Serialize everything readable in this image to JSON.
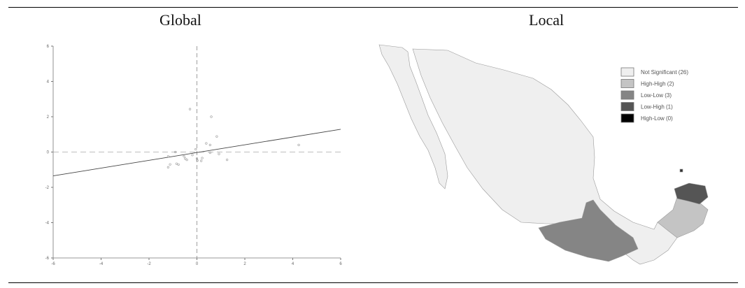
{
  "panels": {
    "left_title": "Global",
    "right_title": "Local"
  },
  "chart_data": {
    "type": "scatter",
    "xlim": [
      -6,
      6
    ],
    "ylim": [
      -6,
      6
    ],
    "xticks": [
      "-6",
      "-4",
      "-2",
      "0",
      "2",
      "4",
      "6"
    ],
    "yticks": [
      "6",
      "4",
      "2",
      "0",
      "-2",
      "-4",
      "-6"
    ],
    "grid": false,
    "reference_lines": {
      "x": 0,
      "y": 0,
      "style": "dashed"
    },
    "regression_line": {
      "slope": 0.22,
      "intercept": -0.03
    },
    "points": [
      [
        -0.29,
        2.43
      ],
      [
        0.6,
        2.0
      ],
      [
        0.83,
        0.88
      ],
      [
        0.39,
        0.49
      ],
      [
        0.55,
        0.4
      ],
      [
        4.25,
        0.4
      ],
      [
        -0.05,
        0.16
      ],
      [
        -0.9,
        0
      ],
      [
        -1.2,
        -0.24
      ],
      [
        -1.12,
        -0.7
      ],
      [
        -1.2,
        -0.86
      ],
      [
        -0.85,
        -0.66
      ],
      [
        -0.77,
        -0.71
      ],
      [
        -0.49,
        -0.37
      ],
      [
        -0.42,
        -0.44
      ],
      [
        -0.19,
        -0.17
      ],
      [
        0,
        -0.37
      ],
      [
        0.02,
        -0.48
      ],
      [
        0.18,
        -0.5
      ],
      [
        0.22,
        -0.34
      ],
      [
        0.55,
        -0.04
      ],
      [
        0.92,
        -0.11
      ],
      [
        1.26,
        -0.44
      ],
      [
        -0.54,
        -0.24
      ]
    ]
  },
  "map": {
    "legend": [
      {
        "label": "Not Significant (26)",
        "color": "#efefef"
      },
      {
        "label": "High-High (2)",
        "color": "#c4c4c4"
      },
      {
        "label": "Low-Low (3)",
        "color": "#858585"
      },
      {
        "label": "Low-High (1)",
        "color": "#555555"
      },
      {
        "label": "High-Low (0)",
        "color": "#000000"
      }
    ]
  }
}
